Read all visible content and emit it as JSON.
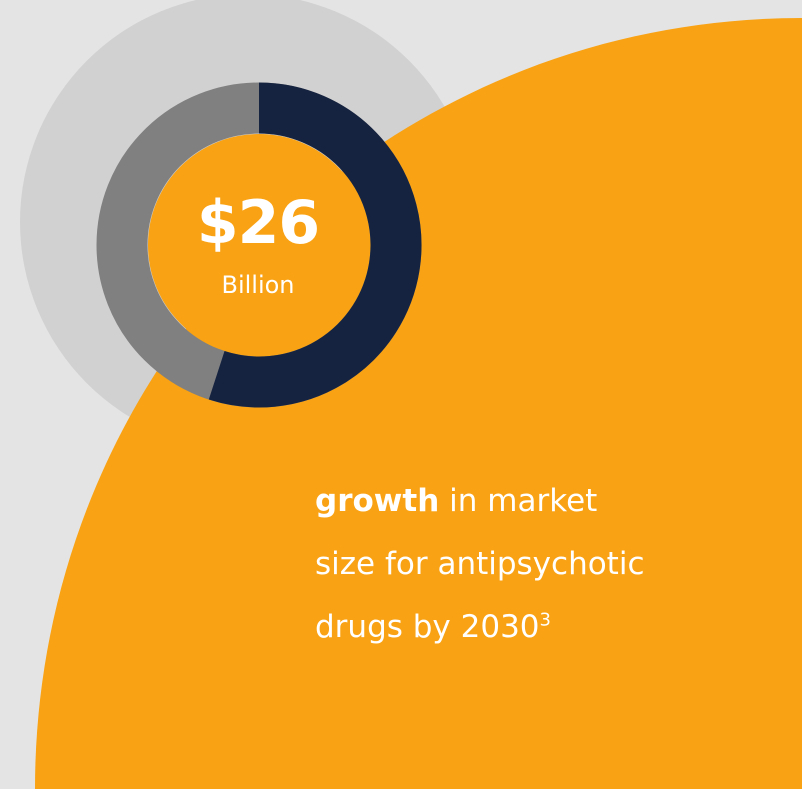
{
  "colors": {
    "background": "#e4e4e4",
    "outer_circle": "#d1d1d1",
    "orange": "#f9a213",
    "navy": "#162340",
    "gray": "#808080",
    "text": "#ffffff"
  },
  "stat": {
    "value": "$26",
    "unit": "Billion",
    "ring_fraction": 0.55
  },
  "caption": {
    "bold": "growth",
    "line1_rest": " in market",
    "line2": "size for antipsychotic",
    "line3": "drugs by 2030",
    "footnote": "3"
  }
}
